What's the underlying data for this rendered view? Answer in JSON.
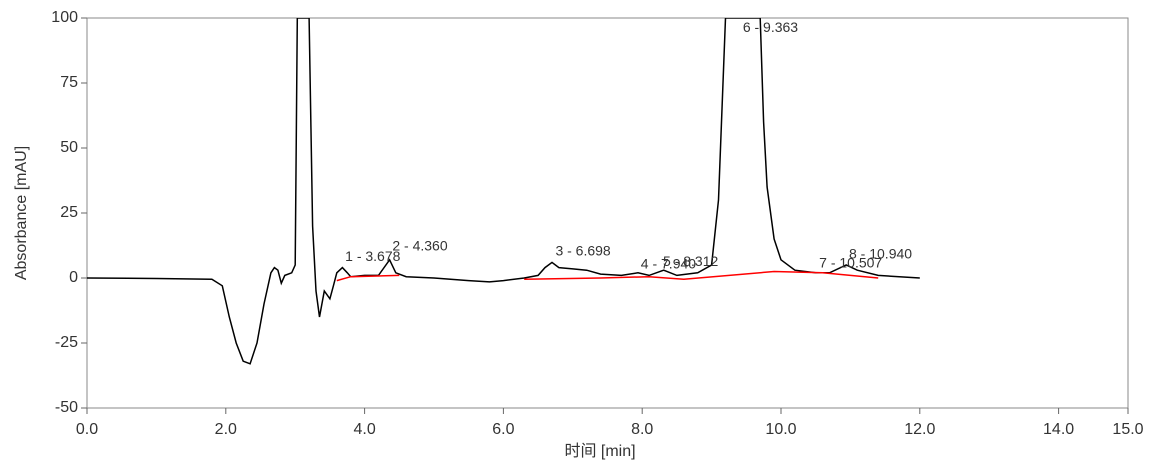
{
  "chart_data": {
    "type": "line",
    "x_label": "时间 [min]",
    "y_label": "Absorbance [mAU]",
    "xlim": [
      0,
      15
    ],
    "ylim": [
      -50,
      100
    ],
    "xticks": [
      {
        "value": 0,
        "label": "0.0"
      },
      {
        "value": 2,
        "label": "2.0"
      },
      {
        "value": 4,
        "label": "4.0"
      },
      {
        "value": 6,
        "label": "6.0"
      },
      {
        "value": 8,
        "label": "8.0"
      },
      {
        "value": 10,
        "label": "10.0"
      },
      {
        "value": 12,
        "label": "12.0"
      },
      {
        "value": 14,
        "label": "14.0"
      },
      {
        "value": 15,
        "label": "15.0"
      }
    ],
    "yticks": [
      -50,
      -25,
      0,
      25,
      50,
      75,
      100
    ],
    "series": [
      {
        "color": "#000000",
        "x": [
          0.0,
          1.0,
          1.8,
          1.95,
          2.05,
          2.15,
          2.25,
          2.35,
          2.45,
          2.55,
          2.65,
          2.7,
          2.75,
          2.8,
          2.85,
          2.95,
          3.0,
          3.03,
          3.2,
          3.25,
          3.3,
          3.35,
          3.42,
          3.5,
          3.55,
          3.6,
          3.68,
          3.75,
          3.8,
          4.0,
          4.2,
          4.36,
          4.45,
          4.6,
          5.0,
          5.5,
          5.8,
          6.0,
          6.3,
          6.5,
          6.6,
          6.7,
          6.8,
          7.0,
          7.2,
          7.4,
          7.7,
          7.94,
          8.1,
          8.31,
          8.5,
          8.8,
          9.0,
          9.1,
          9.2,
          9.7,
          9.75,
          9.8,
          9.9,
          10.0,
          10.2,
          10.5,
          10.7,
          10.94,
          11.1,
          11.4,
          12.0
        ],
        "values": [
          0,
          -0.2,
          -0.5,
          -3,
          -15,
          -25,
          -32,
          -33,
          -25,
          -10,
          2,
          4,
          3,
          -2,
          1,
          2,
          5,
          100,
          100,
          20,
          -5,
          -15,
          -5,
          -8,
          -3,
          2,
          4,
          2,
          0.5,
          1,
          1,
          7,
          2,
          0.5,
          0,
          -1,
          -1.5,
          -1,
          0,
          1,
          4,
          6,
          4,
          3.5,
          3,
          1.5,
          1,
          2,
          1,
          3,
          1,
          2,
          5,
          30,
          100,
          100,
          60,
          35,
          15,
          7,
          3,
          2,
          2,
          5,
          3,
          1,
          0
        ]
      },
      {
        "color": "#ff0000",
        "x": [
          3.6,
          3.8,
          4.5,
          5.0,
          6.3,
          7.4,
          8.1,
          8.6,
          9.9,
          10.6,
          11.4
        ],
        "values": [
          -1,
          0.5,
          1,
          null,
          -0.5,
          0,
          0.5,
          -0.5,
          2.5,
          2,
          0
        ]
      }
    ],
    "annotations": [
      {
        "text": "1 - 3.678",
        "x": 3.72,
        "y": 8
      },
      {
        "text": "2 - 4.360",
        "x": 4.4,
        "y": 12
      },
      {
        "text": "3 - 6.698",
        "x": 6.75,
        "y": 10
      },
      {
        "text": "4 - 7.940",
        "x": 7.98,
        "y": 5
      },
      {
        "text": "5 - 8.312",
        "x": 8.3,
        "y": 6
      },
      {
        "text": "6 - 9.363",
        "x": 9.45,
        "y": 96
      },
      {
        "text": "7 - 10.507",
        "x": 10.55,
        "y": 5.5
      },
      {
        "text": "8 - 10.940",
        "x": 10.98,
        "y": 9
      }
    ]
  }
}
